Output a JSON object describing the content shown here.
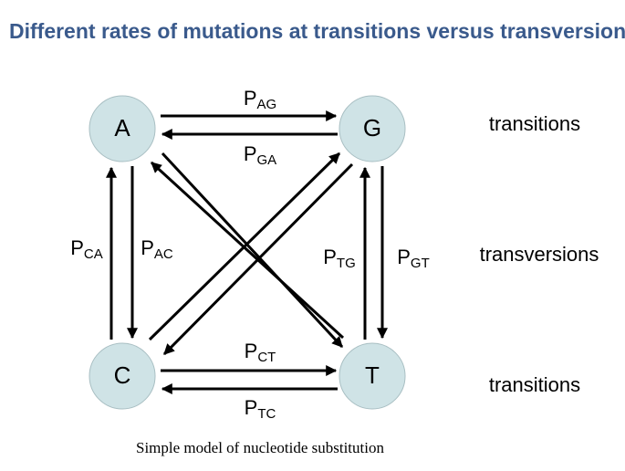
{
  "title": "Different rates of mutations at transitions versus transversions",
  "nodes": [
    {
      "label": "A"
    },
    {
      "label": "G"
    },
    {
      "label": "C"
    },
    {
      "label": "T"
    }
  ],
  "edges": [
    {
      "p": "P",
      "sub": "AG"
    },
    {
      "p": "P",
      "sub": "GA"
    },
    {
      "p": "P",
      "sub": "CT"
    },
    {
      "p": "P",
      "sub": "TC"
    },
    {
      "p": "P",
      "sub": "CA"
    },
    {
      "p": "P",
      "sub": "AC"
    },
    {
      "p": "P",
      "sub": "TG"
    },
    {
      "p": "P",
      "sub": "GT"
    }
  ],
  "side_labels": [
    "transitions",
    "transversions",
    "transitions"
  ],
  "caption": "Simple model of nucleotide substitution"
}
